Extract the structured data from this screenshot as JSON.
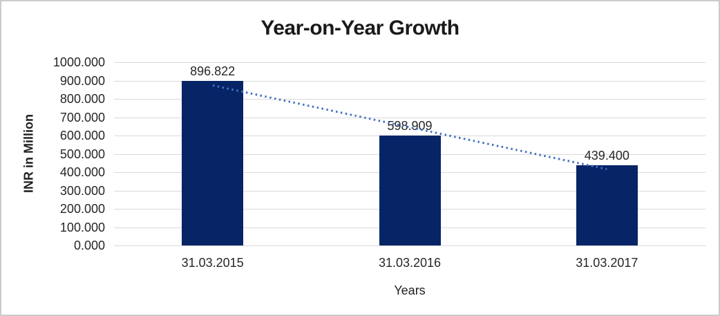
{
  "frame": {
    "background": "#ffffff",
    "border_color": "#cbcbcb"
  },
  "chart_data": {
    "type": "bar",
    "title": "Year-on-Year Growth",
    "xlabel": "Years",
    "ylabel": "INR in Million",
    "categories": [
      "31.03.2015",
      "31.03.2016",
      "31.03.2017"
    ],
    "values": [
      896.822,
      598.909,
      439.4
    ],
    "data_labels": [
      "896.822",
      "598.909",
      "439.400"
    ],
    "ylim": [
      0,
      1000
    ],
    "ytick_step": 100,
    "ytick_labels": [
      "0.000",
      "100.000",
      "200.000",
      "300.000",
      "400.000",
      "500.000",
      "600.000",
      "700.000",
      "800.000",
      "900.000",
      "1000.000"
    ],
    "grid": true,
    "legend": false,
    "trendline": {
      "type": "linear",
      "style": "dotted"
    },
    "colors": {
      "bar": "#062466",
      "gridline": "#d9d9d9",
      "trendline": "#4472c4",
      "text": "#262626",
      "title": "#1a1a1a"
    }
  }
}
